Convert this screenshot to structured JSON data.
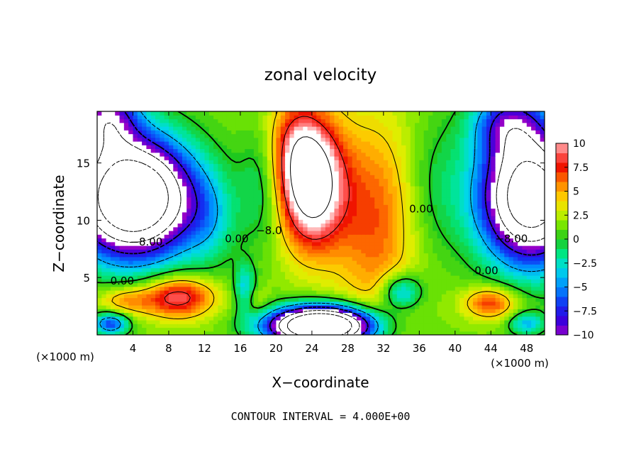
{
  "chart_data": {
    "type": "heatmap",
    "title": "zonal velocity",
    "xlabel": "X−coordinate",
    "ylabel": "Z−coordinate",
    "x_unit_left": "(×1000 m)",
    "x_unit_right": "(×1000 m)",
    "xlim": [
      0,
      50
    ],
    "ylim": [
      0,
      19.5
    ],
    "x_ticks": [
      "4",
      "8",
      "12",
      "16",
      "20",
      "24",
      "28",
      "32",
      "36",
      "40",
      "44",
      "48"
    ],
    "x_tick_values": [
      4,
      8,
      12,
      16,
      20,
      24,
      28,
      32,
      36,
      40,
      44,
      48
    ],
    "y_ticks": [
      "5",
      "10",
      "15"
    ],
    "y_tick_values": [
      5,
      10,
      15
    ],
    "colorbar": {
      "labels": [
        "10",
        "7.5",
        "5",
        "2.5",
        "0",
        "−2.5",
        "−5",
        "−7.5",
        "−10"
      ],
      "values": [
        10,
        7.5,
        5,
        2.5,
        0,
        -2.5,
        -5,
        -7.5,
        -10
      ],
      "range": [
        -10,
        10
      ]
    },
    "contour_labels": [
      {
        "text": "0.00",
        "x": 2.8,
        "z": 4.7
      },
      {
        "text": "−8.00",
        "x": 5.5,
        "z": 8.1
      },
      {
        "text": "0.00",
        "x": 15.6,
        "z": 8.4
      },
      {
        "text": "−8.0",
        "x": 19.2,
        "z": 9.1
      },
      {
        "text": "0.00",
        "x": 36.2,
        "z": 11.0
      },
      {
        "text": "0.00",
        "x": 43.5,
        "z": 5.6
      },
      {
        "text": "−8.00",
        "x": 46.3,
        "z": 8.4
      }
    ],
    "features": [
      {
        "kind": "max",
        "x": 24,
        "z": 13,
        "value": 10
      },
      {
        "kind": "max",
        "x": 22.5,
        "z": 16,
        "value": 10
      },
      {
        "kind": "max",
        "x": 9,
        "z": 3.3,
        "value": 8
      },
      {
        "kind": "max",
        "x": 18.5,
        "z": 3.5,
        "value": 3
      },
      {
        "kind": "min",
        "x": 4,
        "z": 11.5,
        "value": -16
      },
      {
        "kind": "min",
        "x": 49,
        "z": 12,
        "value": -14
      },
      {
        "kind": "min",
        "x": 25,
        "z": 0.8,
        "value": -14
      },
      {
        "kind": "min",
        "x": 1.5,
        "z": 18.5,
        "value": -10
      },
      {
        "kind": "min",
        "x": 34,
        "z": 3.8,
        "value": -6
      },
      {
        "kind": "min",
        "x": 16.8,
        "z": 4,
        "value": -1
      }
    ],
    "footer": "CONTOUR INTERVAL = 4.000E+00",
    "grid": false,
    "legend": "colorbar-right"
  }
}
